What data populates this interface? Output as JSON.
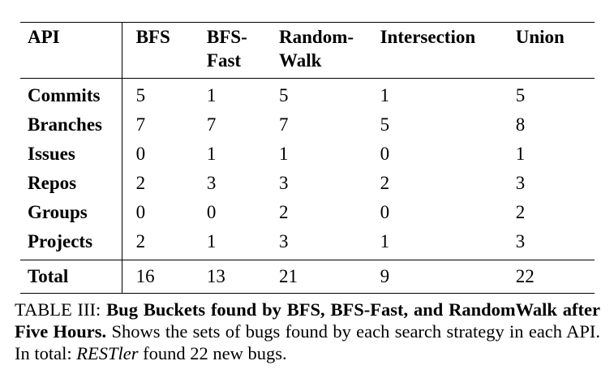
{
  "table": {
    "headers": [
      [
        "API"
      ],
      [
        "BFS"
      ],
      [
        "BFS-",
        "Fast"
      ],
      [
        "Random-",
        "Walk"
      ],
      [
        "Intersection"
      ],
      [
        "Union"
      ]
    ],
    "rows": [
      {
        "api": "Commits",
        "values": [
          "5",
          "1",
          "5",
          "1",
          "5"
        ]
      },
      {
        "api": "Branches",
        "values": [
          "7",
          "7",
          "7",
          "5",
          "8"
        ]
      },
      {
        "api": "Issues",
        "values": [
          "0",
          "1",
          "1",
          "0",
          "1"
        ]
      },
      {
        "api": "Repos",
        "values": [
          "2",
          "3",
          "3",
          "2",
          "3"
        ]
      },
      {
        "api": "Groups",
        "values": [
          "0",
          "0",
          "2",
          "0",
          "2"
        ]
      },
      {
        "api": "Projects",
        "values": [
          "2",
          "1",
          "3",
          "1",
          "3"
        ]
      }
    ],
    "total": {
      "api": "Total",
      "values": [
        "16",
        "13",
        "21",
        "9",
        "22"
      ]
    }
  },
  "caption": {
    "label": "TABLE III:",
    "bold": "Bug Buckets found by BFS, BFS-Fast, and RandomWalk after Five Hours.",
    "text_before": "Shows the sets of bugs found by each search strategy in each API. In total:",
    "italic": "RESTler",
    "text_after": "found 22 new bugs."
  }
}
